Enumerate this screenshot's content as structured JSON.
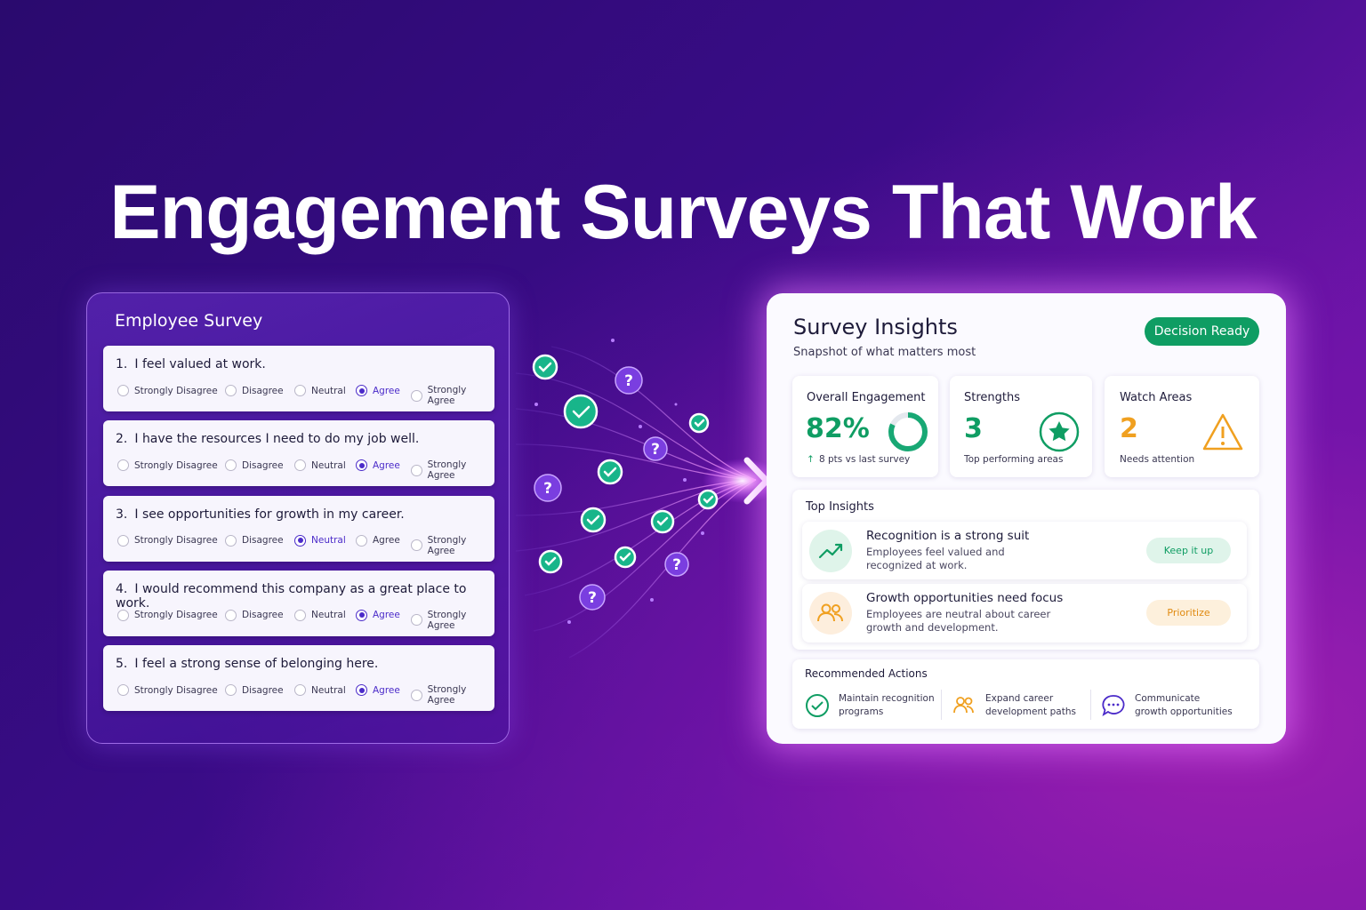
{
  "title": "Engagement Surveys That Work",
  "survey": {
    "title": "Employee Survey",
    "options": [
      "Strongly Disagree",
      "Disagree",
      "Neutral",
      "Agree",
      "Strongly Agree"
    ],
    "questions": [
      {
        "number": "1.",
        "text": "I feel valued at work.",
        "selected": 3
      },
      {
        "number": "2.",
        "text": "I have the resources I need to do my job well.",
        "selected": 3
      },
      {
        "number": "3.",
        "text": "I see opportunities for growth in my career.",
        "selected": 2
      },
      {
        "number": "4.",
        "text": "I would recommend this company as a great place to work.",
        "selected": 3
      },
      {
        "number": "5.",
        "text": "I feel a strong sense of belonging here.",
        "selected": 3
      }
    ]
  },
  "insights": {
    "title": "Survey Insights",
    "subtitle": "Snapshot of what matters most",
    "badge": "Decision Ready",
    "stats": [
      {
        "label": "Overall Engagement",
        "value": 82,
        "value_label": "82%",
        "note": "8 pts vs last survey"
      },
      {
        "label": "Strengths",
        "value": 3,
        "note": "Top performing areas"
      },
      {
        "label": "Watch Areas",
        "value": 2,
        "note": "Needs attention"
      }
    ],
    "top_insights": {
      "title": "Top Insights",
      "items": [
        {
          "title": "Recognition is a strong suit",
          "text": "Employees feel valued and recognized at work.",
          "action": "Keep it up"
        },
        {
          "title": "Growth opportunities need focus",
          "text": "Employees are neutral about career growth and development.",
          "action": "Prioritize"
        }
      ]
    },
    "recommended_actions": {
      "title": "Recommended Actions",
      "items": [
        "Maintain recognition programs",
        "Expand career development paths",
        "Communicate growth opportunities"
      ]
    }
  }
}
